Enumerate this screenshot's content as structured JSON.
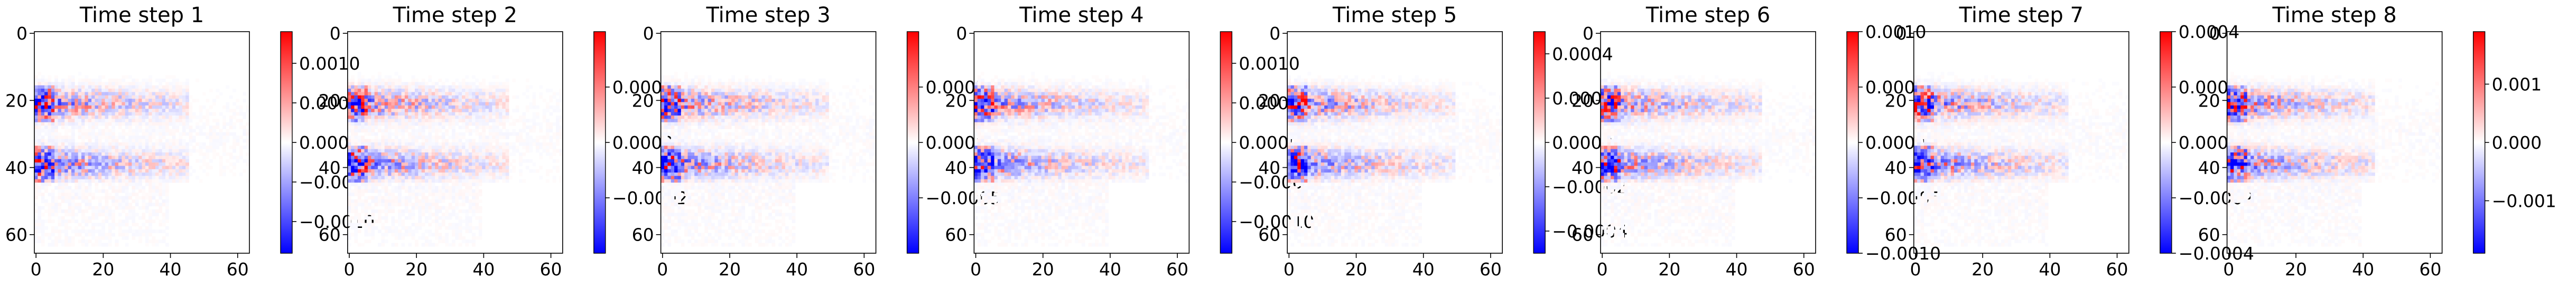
{
  "colormap": {
    "low": "#0000ff",
    "mid": "#ffffff",
    "high": "#ff0000"
  },
  "chart_data": [
    {
      "type": "heatmap",
      "title": "Time step 1",
      "xlim": [
        0,
        63
      ],
      "ylim": [
        63,
        0
      ],
      "x_ticks": [
        0,
        20,
        40,
        60
      ],
      "y_ticks": [
        0,
        20,
        40,
        60
      ],
      "colorbar": {
        "vmin": -0.0014,
        "vmax": 0.0014,
        "ticks": [
          -0.001,
          -0.0005,
          0.0,
          0.0005,
          0.001
        ],
        "tick_labels": [
          "−0.0010",
          "−0.0005",
          "0.0000",
          "0.0005",
          "0.0010"
        ]
      }
    },
    {
      "type": "heatmap",
      "title": "Time step 2",
      "xlim": [
        0,
        63
      ],
      "ylim": [
        63,
        0
      ],
      "x_ticks": [
        0,
        20,
        40,
        60
      ],
      "y_ticks": [
        0,
        20,
        40,
        60
      ],
      "colorbar": {
        "vmin": -0.0004,
        "vmax": 0.0004,
        "ticks": [
          -0.0002,
          0.0,
          0.0002
        ],
        "tick_labels": [
          "−0.0002",
          "0.0000",
          "0.0002"
        ]
      }
    },
    {
      "type": "heatmap",
      "title": "Time step 3",
      "xlim": [
        0,
        63
      ],
      "ylim": [
        63,
        0
      ],
      "x_ticks": [
        0,
        20,
        40,
        60
      ],
      "y_ticks": [
        0,
        20,
        40,
        60
      ],
      "colorbar": {
        "vmin": -0.001,
        "vmax": 0.001,
        "ticks": [
          -0.0005,
          0.0,
          0.0005
        ],
        "tick_labels": [
          "−0.0005",
          "0.0000",
          "0.0005"
        ]
      }
    },
    {
      "type": "heatmap",
      "title": "Time step 4",
      "xlim": [
        0,
        63
      ],
      "ylim": [
        63,
        0
      ],
      "x_ticks": [
        0,
        20,
        40,
        60
      ],
      "y_ticks": [
        0,
        20,
        40,
        60
      ],
      "colorbar": {
        "vmin": -0.0014,
        "vmax": 0.0014,
        "ticks": [
          -0.001,
          -0.0005,
          0.0,
          0.0005,
          0.001
        ],
        "tick_labels": [
          "−0.0010",
          "−0.0005",
          "0.0000",
          "0.0005",
          "0.0010"
        ]
      }
    },
    {
      "type": "heatmap",
      "title": "Time step 5",
      "xlim": [
        0,
        63
      ],
      "ylim": [
        63,
        0
      ],
      "x_ticks": [
        0,
        20,
        40,
        60
      ],
      "y_ticks": [
        0,
        20,
        40,
        60
      ],
      "colorbar": {
        "vmin": -0.0005,
        "vmax": 0.0005,
        "ticks": [
          -0.0004,
          -0.0002,
          0.0,
          0.0002,
          0.0004
        ],
        "tick_labels": [
          "−0.0004",
          "−0.0002",
          "0.0000",
          "0.0002",
          "0.0004"
        ]
      }
    },
    {
      "type": "heatmap",
      "title": "Time step 6",
      "xlim": [
        0,
        63
      ],
      "ylim": [
        63,
        0
      ],
      "x_ticks": [
        0,
        20,
        40,
        60
      ],
      "y_ticks": [
        0,
        20,
        40,
        60
      ],
      "colorbar": {
        "vmin": -0.001,
        "vmax": 0.001,
        "ticks": [
          -0.001,
          -0.0005,
          0.0,
          0.0005,
          0.001
        ],
        "tick_labels": [
          "−0.0010",
          "−0.0005",
          "0.0000",
          "0.0005",
          "0.0010"
        ]
      }
    },
    {
      "type": "heatmap",
      "title": "Time step 7",
      "xlim": [
        0,
        63
      ],
      "ylim": [
        63,
        0
      ],
      "x_ticks": [
        0,
        20,
        40,
        60
      ],
      "y_ticks": [
        0,
        20,
        40,
        60
      ],
      "colorbar": {
        "vmin": -0.0004,
        "vmax": 0.0004,
        "ticks": [
          -0.0004,
          -0.0002,
          0.0,
          0.0002,
          0.0004
        ],
        "tick_labels": [
          "−0.0004",
          "−0.0002",
          "0.0000",
          "0.0002",
          "0.0004"
        ]
      }
    },
    {
      "type": "heatmap",
      "title": "Time step 8",
      "xlim": [
        0,
        63
      ],
      "ylim": [
        63,
        0
      ],
      "x_ticks": [
        0,
        20,
        40,
        60
      ],
      "y_ticks": [
        0,
        20,
        40,
        60
      ],
      "colorbar": {
        "vmin": -0.0019,
        "vmax": 0.0019,
        "ticks": [
          -0.001,
          0.0,
          0.001
        ],
        "tick_labels": [
          "−0.001",
          "0.000",
          "0.001"
        ]
      }
    }
  ]
}
